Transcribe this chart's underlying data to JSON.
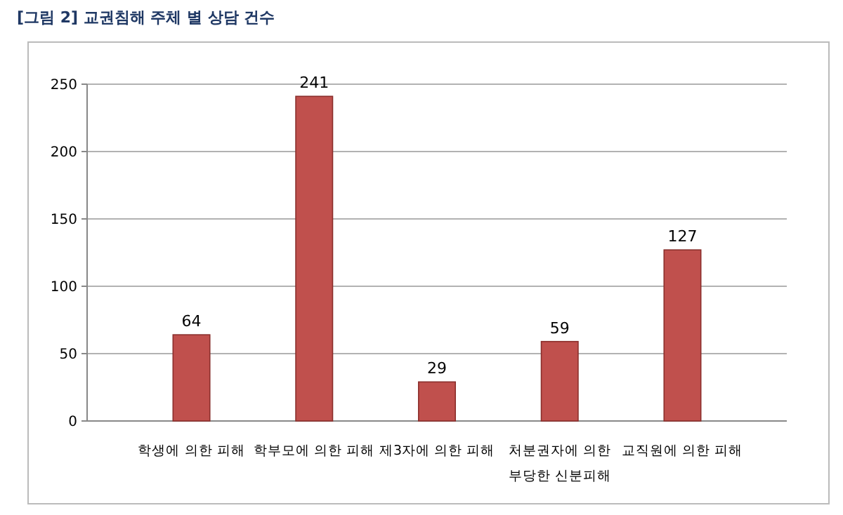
{
  "chart_data": {
    "type": "bar",
    "title": "[그림 2] 교권침해 주체 별 상담 건수",
    "categories": [
      "학생에 의한 피해",
      "학부모에 의한 피해",
      "제3자에 의한 피해",
      "처분권자에 의한 부당한 신분피해",
      "교직원에 의한 피해"
    ],
    "values": [
      64,
      241,
      29,
      59,
      127
    ],
    "color": "#c0504d",
    "data_labels": true,
    "ylim": [
      0,
      250
    ],
    "yticks": [
      0,
      50,
      100,
      150,
      200,
      250
    ],
    "grid": "y"
  }
}
